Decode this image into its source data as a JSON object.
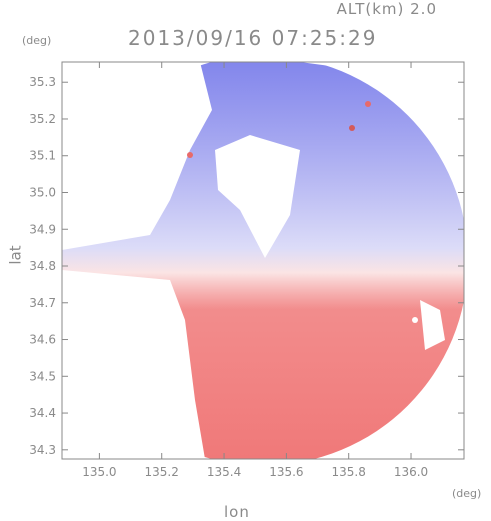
{
  "header": {
    "alt_label": "ALT(km) 2.0",
    "timestamp": "2013/09/16 07:25:29"
  },
  "chart_data": {
    "type": "heatmap",
    "title": "2013/09/16 07:25:29",
    "xlabel": "lon",
    "ylabel": "lat",
    "x_unit": "(deg)",
    "y_unit": "(deg)",
    "xlim": [
      134.88,
      136.17
    ],
    "ylim": [
      34.275,
      35.355
    ],
    "x_ticks": [
      135.0,
      135.2,
      135.4,
      135.6,
      135.8,
      136.0
    ],
    "x_tick_labels": [
      "135.0",
      "135.2",
      "135.4",
      "135.6",
      "135.8",
      "136.0"
    ],
    "y_ticks": [
      34.3,
      34.4,
      34.5,
      34.6,
      34.7,
      34.8,
      34.9,
      35.0,
      35.1,
      35.2,
      35.3
    ],
    "y_tick_labels": [
      "34.3",
      "34.4",
      "34.5",
      "34.6",
      "34.7",
      "34.8",
      "34.9",
      "35.0",
      "35.1",
      "35.2",
      "35.3"
    ],
    "radar_center": {
      "lon": 135.525,
      "lat": 34.815
    },
    "colormap": {
      "negative": "#6a6ee8",
      "zero": "#ffffff",
      "positive": "#f07878"
    },
    "field": "doppler velocity: blue north of radar, red south of radar",
    "grid": false
  }
}
